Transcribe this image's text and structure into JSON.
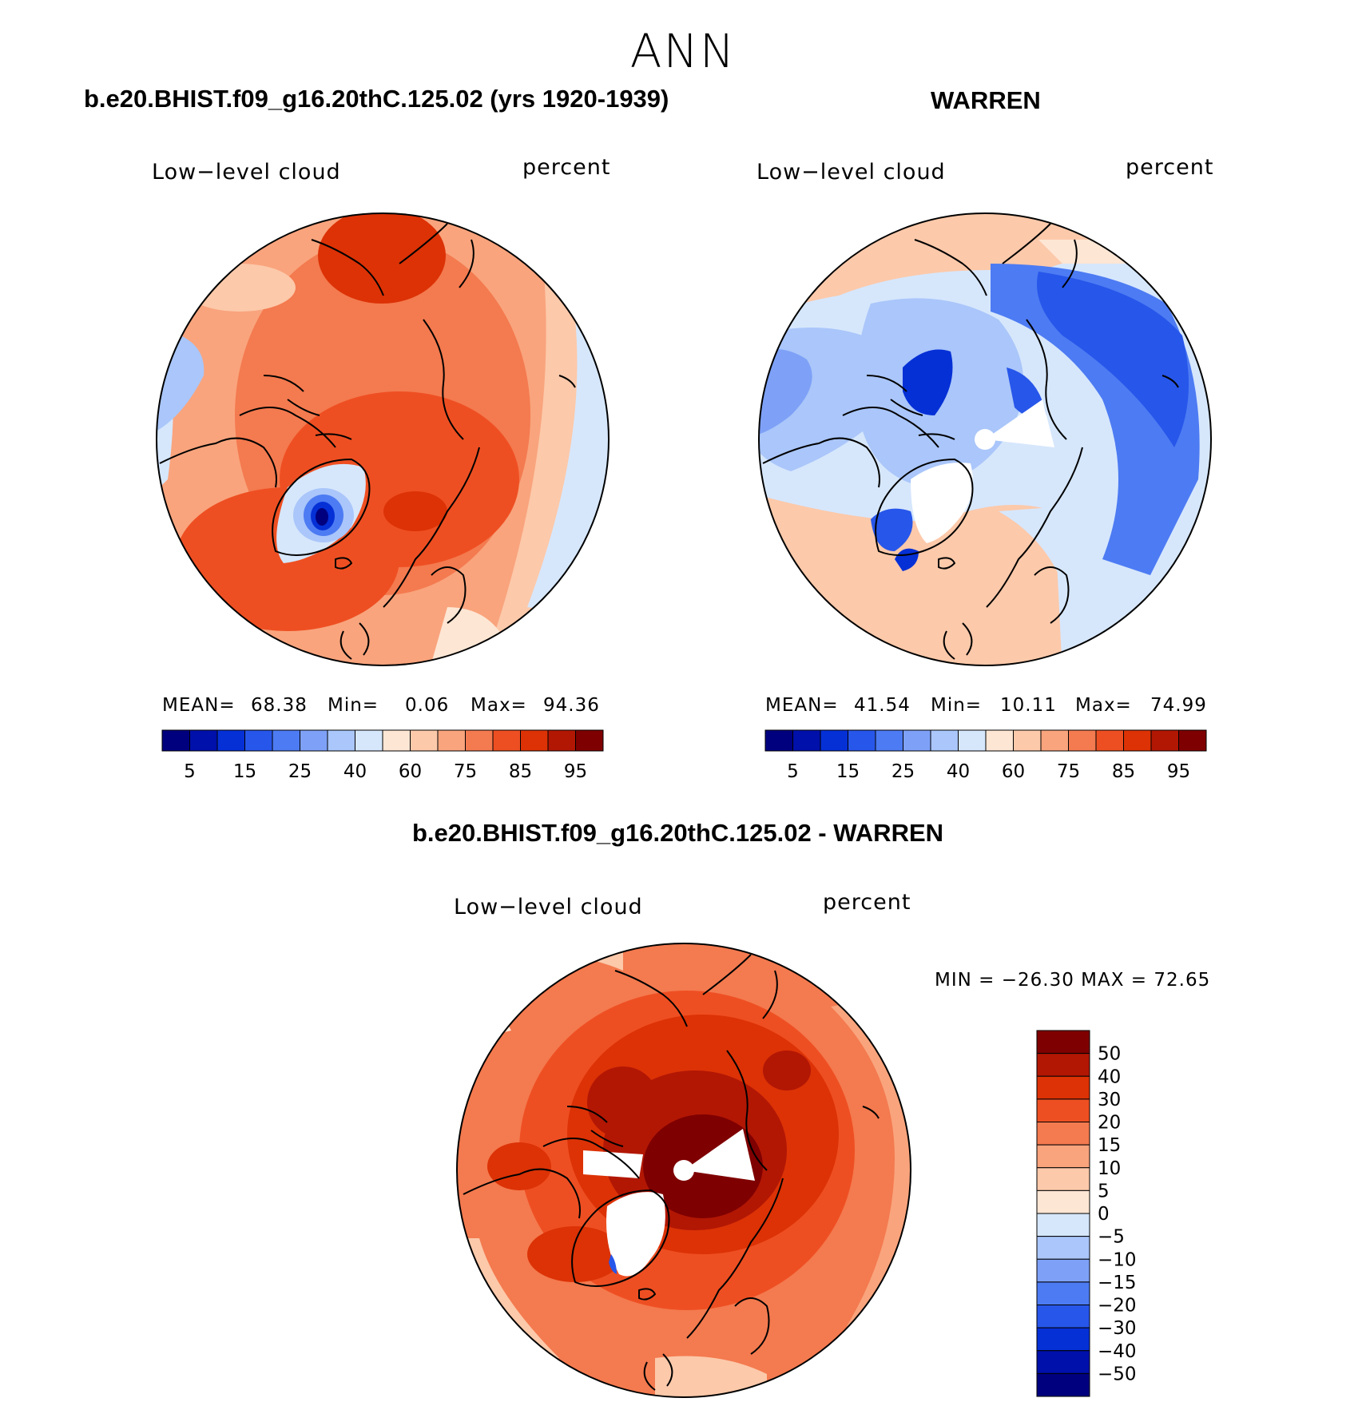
{
  "figure": {
    "title": "ANN",
    "colors": {
      "land_outline": "#000000",
      "missing": "#ffffff"
    }
  },
  "chart_data": [
    {
      "type": "heatmap",
      "projection": "north-polar-stereographic",
      "title": "b.e20.BHIST.f09_g16.20thC.125.02 (yrs 1920-1939)",
      "variable_label": "Low−level cloud",
      "units_label": "percent",
      "stats": {
        "mean_label": "MEAN=",
        "mean": "68.38",
        "min_label": "Min=",
        "min": "0.06",
        "max_label": "Max=",
        "max": "94.36"
      },
      "colorbar": {
        "orientation": "horizontal",
        "tick_labels": [
          "5",
          "15",
          "25",
          "40",
          "60",
          "75",
          "85",
          "95"
        ],
        "colors": [
          "#00007f",
          "#0010aa",
          "#0530d6",
          "#2756ea",
          "#4d7bf3",
          "#7ea1f7",
          "#aac6fa",
          "#d6e7fc",
          "#fde6d4",
          "#fcc9aa",
          "#f9a47d",
          "#f47a4f",
          "#ee4f22",
          "#dc3206",
          "#b21704",
          "#7f0000"
        ]
      }
    },
    {
      "type": "heatmap",
      "projection": "north-polar-stereographic",
      "title": "WARREN",
      "variable_label": "Low−level cloud",
      "units_label": "percent",
      "stats": {
        "mean_label": "MEAN=",
        "mean": "41.54",
        "min_label": "Min=",
        "min": "10.11",
        "max_label": "Max=",
        "max": "74.99"
      },
      "colorbar": {
        "orientation": "horizontal",
        "tick_labels": [
          "5",
          "15",
          "25",
          "40",
          "60",
          "75",
          "85",
          "95"
        ],
        "colors": [
          "#00007f",
          "#0010aa",
          "#0530d6",
          "#2756ea",
          "#4d7bf3",
          "#7ea1f7",
          "#aac6fa",
          "#d6e7fc",
          "#fde6d4",
          "#fcc9aa",
          "#f9a47d",
          "#f47a4f",
          "#ee4f22",
          "#dc3206",
          "#b21704",
          "#7f0000"
        ]
      }
    },
    {
      "type": "heatmap",
      "projection": "north-polar-stereographic",
      "title": "b.e20.BHIST.f09_g16.20thC.125.02 - WARREN",
      "variable_label": "Low−level cloud",
      "units_label": "percent",
      "stats": {
        "min_max_text": "MIN = −26.30 MAX =   72.65",
        "min": -26.3,
        "max": 72.65
      },
      "colorbar": {
        "orientation": "vertical",
        "tick_labels": [
          "50",
          "40",
          "30",
          "20",
          "15",
          "10",
          "5",
          "0",
          "−5",
          "−10",
          "−15",
          "−20",
          "−30",
          "−40",
          "−50"
        ],
        "colors": [
          "#7f0000",
          "#b21704",
          "#dc3206",
          "#ee4f22",
          "#f47a4f",
          "#f9a47d",
          "#fcc9aa",
          "#fde6d4",
          "#d6e7fc",
          "#aac6fa",
          "#7ea1f7",
          "#4d7bf3",
          "#2756ea",
          "#0530d6",
          "#0010aa",
          "#00007f"
        ]
      }
    }
  ]
}
